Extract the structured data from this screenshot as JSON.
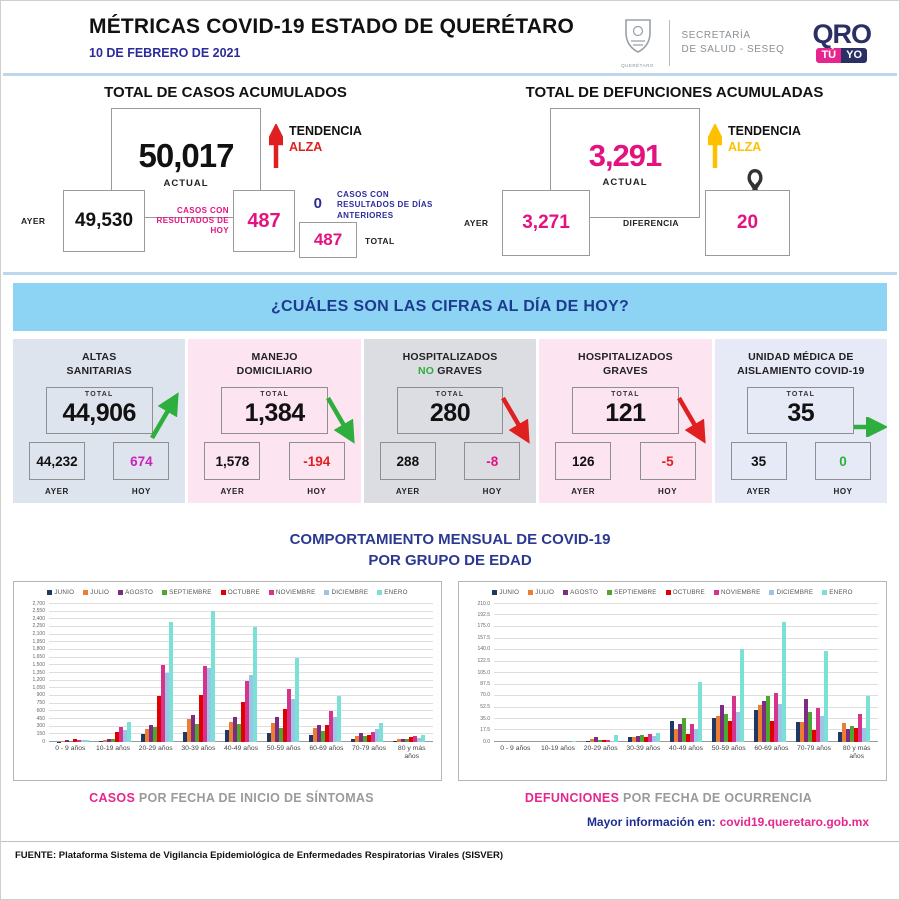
{
  "header": {
    "title": "MÉTRICAS COVID-19 ESTADO DE QUERÉTARO",
    "date": "10 DE FEBRERO DE 2021",
    "crest_caption": "QUERÉTARO",
    "secretaria_line1": "SECRETARÍA",
    "secretaria_line2": "DE SALUD - SESEQ",
    "qro_logo": {
      "qro": "QRO",
      "tu": "TÚ",
      "yo": "YO"
    }
  },
  "casos": {
    "title": "TOTAL DE CASOS ACUMULADOS",
    "actual_value": "50,017",
    "actual_label": "ACTUAL",
    "tendencia_label": "TENDENCIA",
    "tendencia_value": "ALZA",
    "ayer_label": "AYER",
    "ayer_value": "49,530",
    "hoy_label": "CASOS CON RESULTADOS DE HOY",
    "hoy_value": "487",
    "anteriores_value": "0",
    "anteriores_label": "CASOS CON RESULTADOS DE DÍAS ANTERIORES",
    "total_value": "487",
    "total_label": "TOTAL"
  },
  "defunciones": {
    "title": "TOTAL DE DEFUNCIONES ACUMULADAS",
    "actual_value": "3,291",
    "actual_label": "ACTUAL",
    "tendencia_label": "TENDENCIA",
    "tendencia_value": "ALZA",
    "ayer_label": "AYER",
    "ayer_value": "3,271",
    "diferencia_label": "DIFERENCIA",
    "diferencia_value": "20"
  },
  "banner": "¿CUÁLES SON LAS CIFRAS AL DÍA DE HOY?",
  "cards": [
    {
      "id": "altas-sanitarias",
      "bg": "#dde4ee",
      "title_lines": [
        [
          {
            "text": "ALTAS"
          }
        ],
        [
          {
            "text": "SANITARIAS"
          }
        ]
      ],
      "total_label": "TOTAL",
      "total": "44,906",
      "ayer": "44,232",
      "hoy": "674",
      "ayer_label": "AYER",
      "hoy_label": "HOY",
      "hoy_color": "#cc22bb",
      "trend": "up",
      "trend_color": "#2eae3c"
    },
    {
      "id": "manejo-domiciliario",
      "bg": "#fce4f1",
      "title_lines": [
        [
          {
            "text": "MANEJO"
          }
        ],
        [
          {
            "text": "DOMICILIARIO"
          }
        ]
      ],
      "total_label": "TOTAL",
      "total": "1,384",
      "ayer": "1,578",
      "hoy": "-194",
      "ayer_label": "AYER",
      "hoy_label": "HOY",
      "hoy_color": "#e02020",
      "trend": "down",
      "trend_color": "#2eae3c"
    },
    {
      "id": "hospitalizados-no-graves",
      "bg": "#dcdde3",
      "title_lines": [
        [
          {
            "text": "HOSPITALIZADOS"
          }
        ],
        [
          {
            "text": "NO ",
            "color": "#2eae3c"
          },
          {
            "text": "GRAVES"
          }
        ]
      ],
      "total_label": "TOTAL",
      "total": "280",
      "ayer": "288",
      "hoy": "-8",
      "ayer_label": "AYER",
      "hoy_label": "HOY",
      "hoy_color": "#e41280",
      "trend": "down",
      "trend_color": "#e02020"
    },
    {
      "id": "hospitalizados-graves",
      "bg": "#fce4f1",
      "title_lines": [
        [
          {
            "text": "HOSPITALIZADOS"
          }
        ],
        [
          {
            "text": "GRAVES"
          }
        ]
      ],
      "total_label": "TOTAL",
      "total": "121",
      "ayer": "126",
      "hoy": "-5",
      "ayer_label": "AYER",
      "hoy_label": "HOY",
      "hoy_color": "#e02020",
      "trend": "down",
      "trend_color": "#e02020"
    },
    {
      "id": "unidad-medica-aislamiento",
      "bg": "#e6e9f6",
      "title_lines": [
        [
          {
            "text": "UNIDAD MÉDICA DE"
          }
        ],
        [
          {
            "text": "AISLAMIENTO COVID-19"
          }
        ]
      ],
      "total_label": "TOTAL",
      "total": "35",
      "ayer": "35",
      "hoy": "0",
      "ayer_label": "AYER",
      "hoy_label": "HOY",
      "hoy_color": "#2eae3c",
      "trend": "right",
      "trend_color": "#2eae3c"
    }
  ],
  "charts_section": {
    "title_line1": "COMPORTAMIENTO MENSUAL DE COVID-19",
    "title_line2": "POR GRUPO DE EDAD"
  },
  "chart_data": [
    {
      "type": "bar",
      "caption_highlight": "CASOS",
      "caption_rest": " POR FECHA DE INICIO DE SÍNTOMAS",
      "categories": [
        "0 - 9 años",
        "10-19 años",
        "20-29 años",
        "30-39 años",
        "40-49 años",
        "50-59 años",
        "60-69 años",
        "70-79 años",
        "80 y más años"
      ],
      "ylim": [
        0,
        2700
      ],
      "ystep": 150,
      "ydecimals": 0,
      "series": [
        {
          "name": "JUNIO",
          "color": "#1f3864",
          "values": [
            10,
            20,
            150,
            190,
            235,
            180,
            140,
            65,
            15
          ]
        },
        {
          "name": "JULIO",
          "color": "#ed7d31",
          "values": [
            25,
            45,
            250,
            455,
            390,
            380,
            270,
            120,
            50
          ]
        },
        {
          "name": "AGOSTO",
          "color": "#7c2d83",
          "values": [
            30,
            55,
            330,
            530,
            490,
            480,
            335,
            170,
            65
          ]
        },
        {
          "name": "SEPTIEMBRE",
          "color": "#4ea72e",
          "values": [
            25,
            50,
            300,
            360,
            355,
            280,
            220,
            120,
            50
          ]
        },
        {
          "name": "OCTUBRE",
          "color": "#e00000",
          "values": [
            60,
            200,
            905,
            915,
            790,
            640,
            330,
            140,
            90
          ]
        },
        {
          "name": "NOVIEMBRE",
          "color": "#d6348c",
          "values": [
            45,
            300,
            1500,
            1490,
            1190,
            1040,
            600,
            205,
            110
          ]
        },
        {
          "name": "DICIEMBRE",
          "color": "#9dc3e6",
          "values": [
            35,
            230,
            1360,
            1450,
            1310,
            840,
            480,
            255,
            85
          ]
        },
        {
          "name": "ENERO",
          "color": "#7be0d6",
          "values": [
            45,
            390,
            2340,
            2560,
            2250,
            1640,
            900,
            365,
            140
          ]
        }
      ]
    },
    {
      "type": "bar",
      "caption_highlight": "DEFUNCIONES",
      "caption_rest": " POR FECHA DE OCURRENCIA",
      "categories": [
        "0 - 9 años",
        "10-19 años",
        "20-29 años",
        "30-39 años",
        "40-49 años",
        "50-59 años",
        "60-69 años",
        "70-79 años",
        "80 y más años"
      ],
      "ylim": [
        0,
        210
      ],
      "ystep": 17.5,
      "ydecimals": 1,
      "series": [
        {
          "name": "JUNIO",
          "color": "#1f3864",
          "values": [
            0,
            0,
            1,
            7,
            32,
            36,
            48,
            31,
            16
          ]
        },
        {
          "name": "JULIO",
          "color": "#ed7d31",
          "values": [
            0,
            0,
            5,
            8,
            20,
            40,
            57,
            31,
            29
          ]
        },
        {
          "name": "AGOSTO",
          "color": "#7c2d83",
          "values": [
            0,
            0,
            8,
            9,
            27,
            56,
            62,
            65,
            20
          ]
        },
        {
          "name": "SEPTIEMBRE",
          "color": "#4ea72e",
          "values": [
            0,
            0,
            3,
            10,
            36,
            43,
            70,
            46,
            25
          ]
        },
        {
          "name": "OCTUBRE",
          "color": "#e00000",
          "values": [
            0,
            0,
            3,
            7,
            12,
            32,
            32,
            19,
            22
          ]
        },
        {
          "name": "NOVIEMBRE",
          "color": "#d6348c",
          "values": [
            0,
            0,
            3,
            12,
            28,
            70,
            75,
            52,
            43
          ]
        },
        {
          "name": "DICIEMBRE",
          "color": "#9dc3e6",
          "values": [
            0,
            0,
            2,
            9,
            20,
            46,
            58,
            39,
            22
          ]
        },
        {
          "name": "ENERO",
          "color": "#7be0d6",
          "values": [
            0,
            1,
            10,
            14,
            91,
            142,
            182,
            138,
            70
          ]
        }
      ]
    }
  ],
  "footer": {
    "more_info_label": "Mayor información en:",
    "more_info_link": "covid19.queretaro.gob.mx",
    "source": "FUENTE: Plataforma Sistema de Vigilancia Epidemiológica de Enfermedades Respiratorias Virales (SISVER)"
  }
}
